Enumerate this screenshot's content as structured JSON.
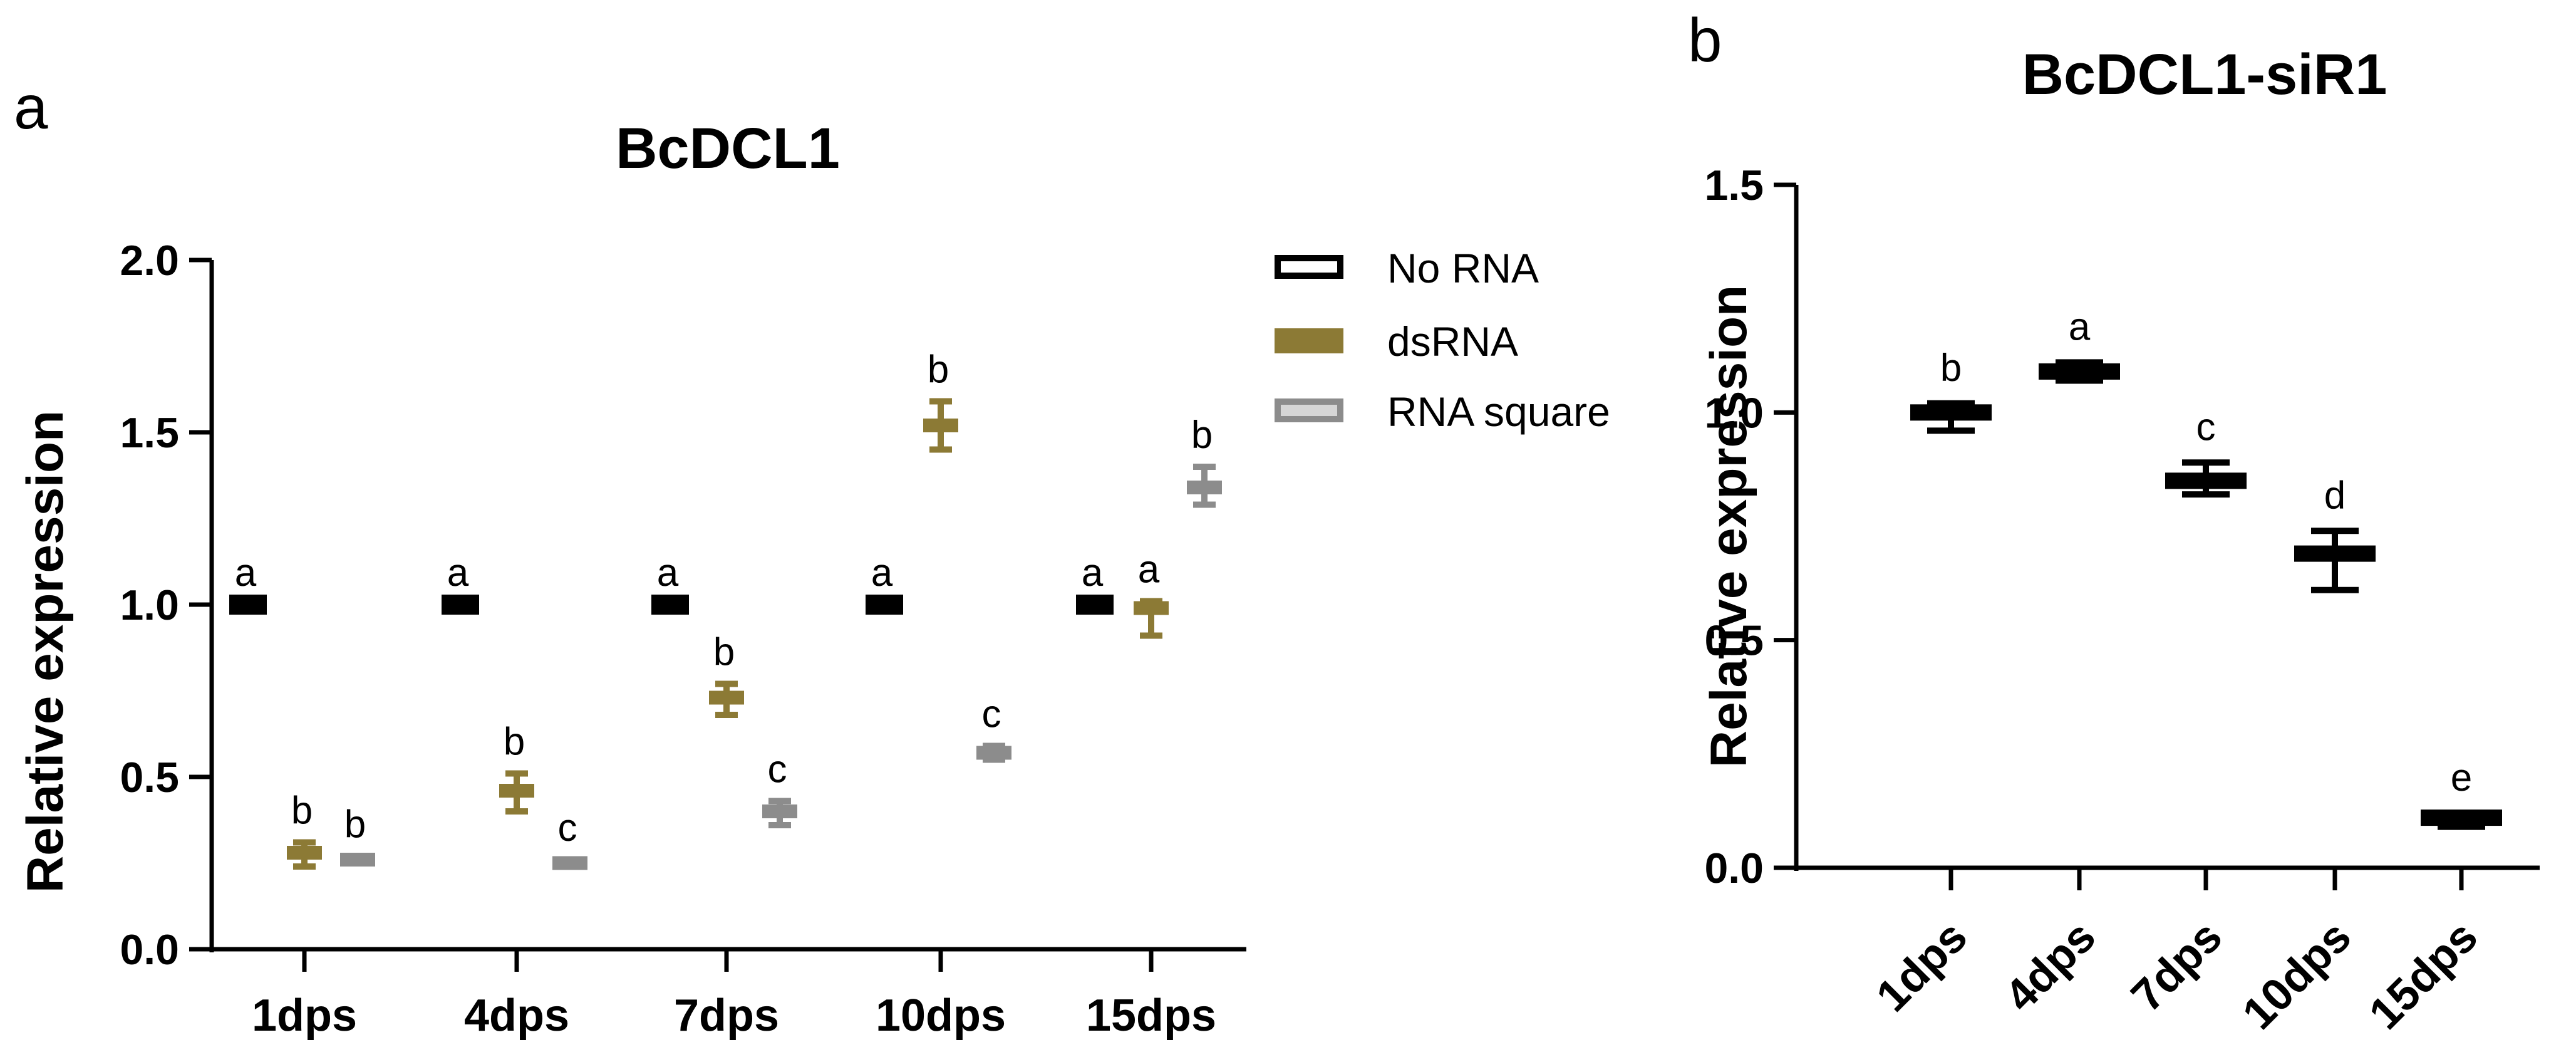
{
  "colors": {
    "No RNA": "#000000",
    "dsRNA": "#8c7a35",
    "RNA square": "#8c8c8c",
    "axis": "#000000"
  },
  "chart_data": [
    {
      "panel": "a",
      "type": "scatter",
      "title": "BcDCL1",
      "xlabel": "",
      "ylabel": "Relative expression",
      "ylim": [
        0,
        2.0
      ],
      "yticks": [
        "0.0",
        "0.5",
        "1.0",
        "1.5",
        "2.0"
      ],
      "yticks_values": [
        0,
        0.5,
        1.0,
        1.5,
        2.0
      ],
      "categories": [
        "1dps",
        "4dps",
        "7dps",
        "10dps",
        "15dps"
      ],
      "legend_position": "top-right",
      "grid": false,
      "series": [
        {
          "name": "No RNA",
          "mean": [
            1.0,
            1.0,
            1.0,
            1.0,
            1.0
          ],
          "low": [
            1.0,
            1.0,
            1.0,
            1.0,
            1.0
          ],
          "high": [
            1.0,
            1.0,
            1.0,
            1.0,
            1.0
          ],
          "letters": [
            "a",
            "a",
            "a",
            "a",
            "a"
          ]
        },
        {
          "name": "dsRNA",
          "mean": [
            0.28,
            0.46,
            0.73,
            1.52,
            0.99
          ],
          "low": [
            0.24,
            0.4,
            0.68,
            1.45,
            0.91
          ],
          "high": [
            0.31,
            0.51,
            0.77,
            1.59,
            1.01
          ],
          "letters": [
            "b",
            "b",
            "b",
            "b",
            "a"
          ]
        },
        {
          "name": "RNA square",
          "mean": [
            0.26,
            0.25,
            0.4,
            0.57,
            1.34
          ],
          "low": [
            0.25,
            0.24,
            0.36,
            0.55,
            1.29
          ],
          "high": [
            0.27,
            0.26,
            0.43,
            0.59,
            1.4
          ],
          "letters": [
            "b",
            "c",
            "c",
            "c",
            "b"
          ]
        }
      ]
    },
    {
      "panel": "b",
      "type": "scatter",
      "title": "BcDCL1-siR1",
      "xlabel": "",
      "ylabel": "Relative expression",
      "ylim": [
        0,
        1.5
      ],
      "yticks": [
        "0.0",
        "0.5",
        "1.0",
        "1.5"
      ],
      "yticks_values": [
        0,
        0.5,
        1.0,
        1.5
      ],
      "categories": [
        "1dps",
        "4dps",
        "7dps",
        "10dps",
        "15dps"
      ],
      "grid": false,
      "series": [
        {
          "mean": [
            1.0,
            1.09,
            0.85,
            0.69,
            0.11
          ],
          "low": [
            0.96,
            1.07,
            0.82,
            0.61,
            0.09
          ],
          "high": [
            1.02,
            1.11,
            0.89,
            0.74,
            0.12
          ],
          "letters": [
            "b",
            "a",
            "c",
            "d",
            "e"
          ]
        }
      ]
    }
  ]
}
